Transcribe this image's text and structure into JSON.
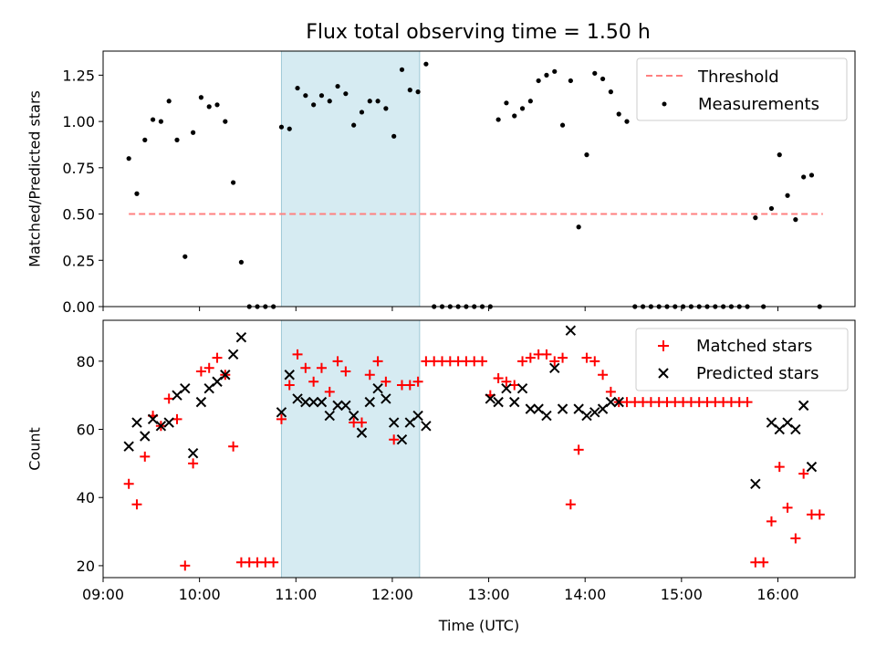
{
  "chart_data": [
    {
      "type": "scatter",
      "title": "Flux total observing time = 1.50 h",
      "xlabel": "",
      "ylabel": "Matched/Predicted stars",
      "xlim": [
        "09:00",
        "16:48"
      ],
      "ylim": [
        0,
        1.38
      ],
      "yticks": [
        "0.00",
        "0.25",
        "0.50",
        "0.75",
        "1.00",
        "1.25"
      ],
      "xticks": [
        "09:00",
        "10:00",
        "11:00",
        "12:00",
        "13:00",
        "14:00",
        "15:00",
        "16:00"
      ],
      "highlight_span": [
        "10:51",
        "12:17"
      ],
      "highlight_color": "#add8e6",
      "legend_position": "upper right",
      "series": [
        {
          "name": "Threshold",
          "style": "dashed-line",
          "color": "#ff8080",
          "x": [
            "09:16",
            "16:28"
          ],
          "y": [
            0.5,
            0.5
          ]
        },
        {
          "name": "Measurements",
          "style": "dot",
          "color": "#000000",
          "x": [
            "09:16",
            "09:21",
            "09:26",
            "09:31",
            "09:36",
            "09:41",
            "09:46",
            "09:51",
            "09:56",
            "10:01",
            "10:06",
            "10:11",
            "10:16",
            "10:21",
            "10:26",
            "10:31",
            "10:36",
            "10:41",
            "10:46",
            "10:51",
            "10:56",
            "11:01",
            "11:06",
            "11:11",
            "11:16",
            "11:21",
            "11:26",
            "11:31",
            "11:36",
            "11:41",
            "11:46",
            "11:51",
            "11:56",
            "12:01",
            "12:06",
            "12:11",
            "12:16",
            "12:21",
            "12:26",
            "12:31",
            "12:36",
            "12:41",
            "12:46",
            "12:51",
            "12:56",
            "13:01",
            "13:06",
            "13:11",
            "13:16",
            "13:21",
            "13:26",
            "13:31",
            "13:36",
            "13:41",
            "13:46",
            "13:51",
            "13:56",
            "14:01",
            "14:06",
            "14:11",
            "14:16",
            "14:21",
            "14:26",
            "14:31",
            "14:36",
            "14:41",
            "14:46",
            "14:51",
            "14:56",
            "15:01",
            "15:06",
            "15:11",
            "15:16",
            "15:21",
            "15:26",
            "15:31",
            "15:36",
            "15:41",
            "15:46",
            "15:51",
            "15:56",
            "16:01",
            "16:06",
            "16:11",
            "16:16",
            "16:21",
            "16:26"
          ],
          "y": [
            0.8,
            0.61,
            0.9,
            1.01,
            1.0,
            1.11,
            0.9,
            0.27,
            0.94,
            1.13,
            1.08,
            1.09,
            1.0,
            0.67,
            0.24,
            0,
            0,
            0,
            0,
            0.97,
            0.96,
            1.18,
            1.14,
            1.09,
            1.14,
            1.11,
            1.19,
            1.15,
            0.98,
            1.05,
            1.11,
            1.11,
            1.07,
            0.92,
            1.28,
            1.17,
            1.16,
            1.31,
            0,
            0,
            0,
            0,
            0,
            0,
            0,
            0,
            1.01,
            1.1,
            1.03,
            1.07,
            1.11,
            1.22,
            1.25,
            1.27,
            0.98,
            1.22,
            0.43,
            0.82,
            1.26,
            1.23,
            1.16,
            1.04,
            1.0,
            0,
            0,
            0,
            0,
            0,
            0,
            0,
            0,
            0,
            0,
            0,
            0,
            0,
            0,
            0,
            0.48,
            0,
            0.53,
            0.82,
            0.6,
            0.47,
            0.7,
            0.71,
            0
          ]
        }
      ]
    },
    {
      "type": "scatter",
      "title": "",
      "xlabel": "Time (UTC)",
      "ylabel": "Count",
      "xlim": [
        "09:00",
        "16:48"
      ],
      "ylim": [
        16.5,
        92
      ],
      "yticks": [
        "20",
        "40",
        "60",
        "80"
      ],
      "xticks": [
        "09:00",
        "10:00",
        "11:00",
        "12:00",
        "13:00",
        "14:00",
        "15:00",
        "16:00"
      ],
      "highlight_span": [
        "10:51",
        "12:17"
      ],
      "highlight_color": "#add8e6",
      "legend_position": "upper right",
      "series": [
        {
          "name": "Matched stars",
          "marker": "plus",
          "color": "#ff0000",
          "x": [
            "09:16",
            "09:21",
            "09:26",
            "09:31",
            "09:36",
            "09:41",
            "09:46",
            "09:51",
            "09:56",
            "10:01",
            "10:06",
            "10:11",
            "10:16",
            "10:21",
            "10:26",
            "10:31",
            "10:36",
            "10:41",
            "10:46",
            "10:51",
            "10:56",
            "11:01",
            "11:06",
            "11:11",
            "11:16",
            "11:21",
            "11:26",
            "11:31",
            "11:36",
            "11:41",
            "11:46",
            "11:51",
            "11:56",
            "12:01",
            "12:06",
            "12:11",
            "12:16",
            "12:21",
            "12:26",
            "12:31",
            "12:36",
            "12:41",
            "12:46",
            "12:51",
            "12:56",
            "13:01",
            "13:06",
            "13:11",
            "13:16",
            "13:21",
            "13:26",
            "13:31",
            "13:36",
            "13:41",
            "13:46",
            "13:51",
            "13:56",
            "14:01",
            "14:06",
            "14:11",
            "14:16",
            "14:21",
            "14:26",
            "14:31",
            "14:36",
            "14:41",
            "14:46",
            "14:51",
            "14:56",
            "15:01",
            "15:06",
            "15:11",
            "15:16",
            "15:21",
            "15:26",
            "15:31",
            "15:36",
            "15:41",
            "15:46",
            "15:51",
            "15:56",
            "16:01",
            "16:06",
            "16:11",
            "16:16",
            "16:21",
            "16:26"
          ],
          "y": [
            44,
            38,
            52,
            64,
            61,
            69,
            63,
            20,
            50,
            77,
            78,
            81,
            76,
            55,
            21,
            21,
            21,
            21,
            21,
            63,
            73,
            82,
            78,
            74,
            78,
            71,
            80,
            77,
            62,
            62,
            76,
            80,
            74,
            57,
            73,
            73,
            74,
            80,
            80,
            80,
            80,
            80,
            80,
            80,
            80,
            70,
            75,
            74,
            73,
            80,
            81,
            82,
            82,
            80,
            81,
            38,
            54,
            81,
            80,
            76,
            71,
            68,
            68,
            68,
            68,
            68,
            68,
            68,
            68,
            68,
            68,
            68,
            68,
            68,
            68,
            68,
            68,
            68,
            21,
            21,
            33,
            49,
            37,
            28,
            47,
            35,
            35
          ]
        },
        {
          "name": "Predicted stars",
          "marker": "x",
          "color": "#000000",
          "x": [
            "09:16",
            "09:21",
            "09:26",
            "09:31",
            "09:36",
            "09:41",
            "09:46",
            "09:51",
            "09:56",
            "10:01",
            "10:06",
            "10:11",
            "10:16",
            "10:21",
            "10:26",
            "10:51",
            "10:56",
            "11:01",
            "11:06",
            "11:11",
            "11:16",
            "11:21",
            "11:26",
            "11:31",
            "11:36",
            "11:41",
            "11:46",
            "11:51",
            "11:56",
            "12:01",
            "12:06",
            "12:11",
            "12:16",
            "12:21",
            "13:01",
            "13:06",
            "13:11",
            "13:16",
            "13:21",
            "13:26",
            "13:31",
            "13:36",
            "13:41",
            "13:46",
            "13:51",
            "13:56",
            "14:01",
            "14:06",
            "14:11",
            "14:16",
            "14:21",
            "15:46",
            "15:56",
            "16:01",
            "16:06",
            "16:11",
            "16:16",
            "16:21"
          ],
          "y": [
            55,
            62,
            58,
            63,
            61,
            62,
            70,
            72,
            53,
            68,
            72,
            74,
            76,
            82,
            87,
            65,
            76,
            69,
            68,
            68,
            68,
            64,
            67,
            67,
            64,
            59,
            68,
            72,
            69,
            62,
            57,
            62,
            64,
            61,
            69,
            68,
            72,
            68,
            72,
            66,
            66,
            64,
            78,
            66,
            89,
            66,
            64,
            65,
            66,
            68,
            68,
            44,
            62,
            60,
            62,
            60,
            67,
            49
          ]
        }
      ]
    }
  ]
}
